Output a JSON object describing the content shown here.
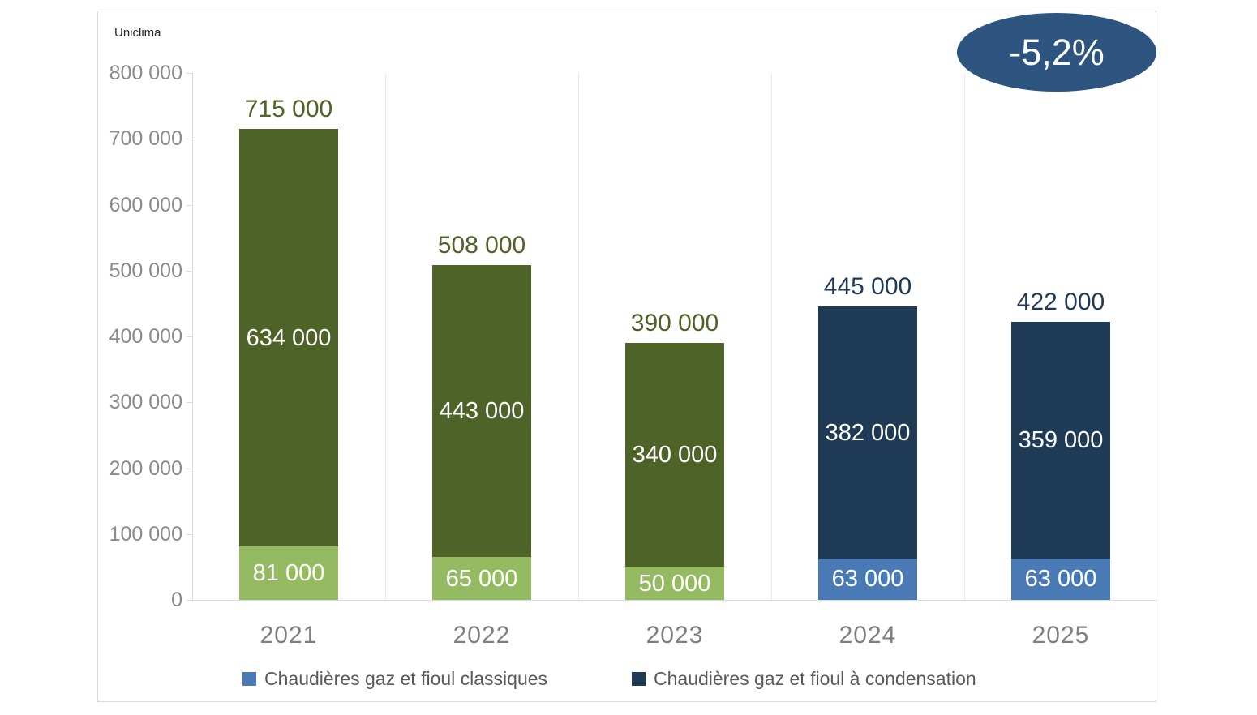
{
  "source_label": "Uniclima",
  "badge": {
    "text": "-5,2%",
    "fill": "#2d5580",
    "text_color": "#ffffff"
  },
  "legend": {
    "items": [
      {
        "label": "Chaudières gaz et fioul classiques",
        "color": "#4a7ab5"
      },
      {
        "label": "Chaudières gaz et fioul à condensation",
        "color": "#1f3a54"
      }
    ]
  },
  "chart_data": {
    "type": "bar",
    "stacked": true,
    "title": "",
    "xlabel": "",
    "ylabel": "",
    "categories": [
      "2021",
      "2022",
      "2023",
      "2024",
      "2025"
    ],
    "series": [
      {
        "name": "Chaudières gaz et fioul classiques",
        "position": "bottom",
        "values": [
          81000,
          65000,
          50000,
          63000,
          63000
        ],
        "labels": [
          "81 000",
          "65 000",
          "50 000",
          "63 000",
          "63 000"
        ]
      },
      {
        "name": "Chaudières gaz et fioul à condensation",
        "position": "top",
        "values": [
          634000,
          443000,
          340000,
          382000,
          359000
        ],
        "labels": [
          "634 000",
          "443 000",
          "340 000",
          "382 000",
          "359 000"
        ]
      }
    ],
    "totals": {
      "values": [
        715000,
        508000,
        390000,
        445000,
        422000
      ],
      "labels": [
        "715 000",
        "508 000",
        "390 000",
        "445 000",
        "422 000"
      ]
    },
    "bar_styles": [
      {
        "bottom": "#94bb62",
        "top": "#4e6327",
        "total_label_color": "#4e6327"
      },
      {
        "bottom": "#94bb62",
        "top": "#4e6327",
        "total_label_color": "#4e6327"
      },
      {
        "bottom": "#94bb62",
        "top": "#4e6327",
        "total_label_color": "#4e6327"
      },
      {
        "bottom": "#4a7ab5",
        "top": "#1f3a54",
        "total_label_color": "#1f3a54"
      },
      {
        "bottom": "#4a7ab5",
        "top": "#1f3a54",
        "total_label_color": "#1f3a54"
      }
    ],
    "y_axis": {
      "min": 0,
      "max": 800000,
      "step": 100000,
      "tick_labels": [
        "0",
        "100 000",
        "200 000",
        "300 000",
        "400 000",
        "500 000",
        "600 000",
        "700 000",
        "800 000"
      ]
    },
    "grid": "vertical-category-separators",
    "legend_position": "bottom",
    "annotation": "-5,2%"
  }
}
